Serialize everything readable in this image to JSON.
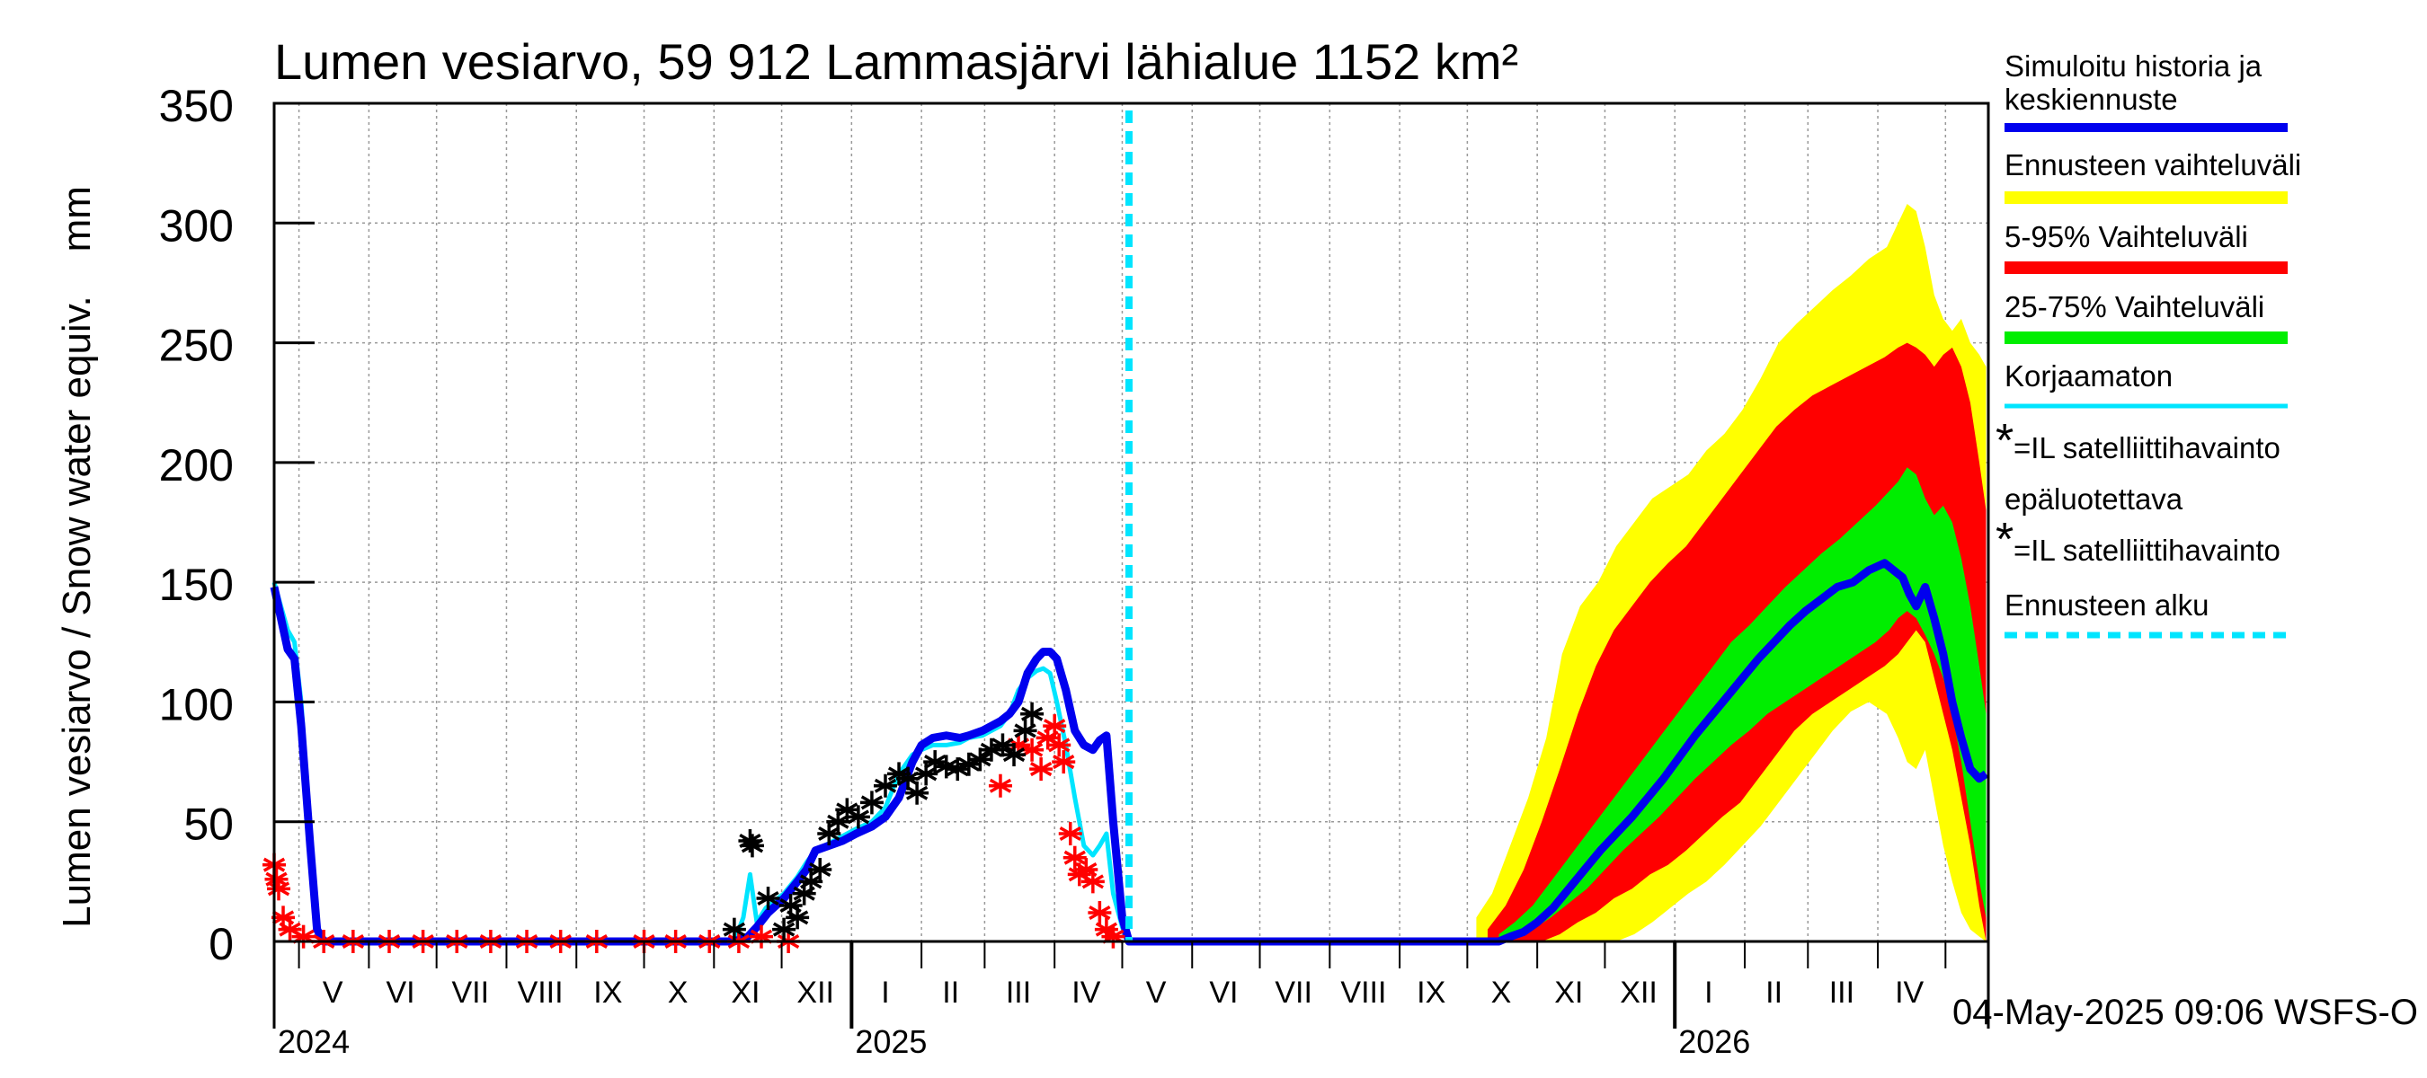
{
  "title": "Lumen vesiarvo, 59 912 Lammasjärvi lähialue 1152 km²",
  "footer": "04-May-2025 09:06 WSFS-O",
  "colors": {
    "simulated": "#0000ee",
    "uncorrected": "#00e5ff",
    "range_full": "#ffff00",
    "range_5_95": "#ff0000",
    "range_25_75": "#00ee00",
    "obs_unreliable": "#ff0000",
    "obs": "#000000",
    "forecast_start": "#00e5ff"
  },
  "legend": {
    "simulated": "Simuloitu historia ja keskiennuste",
    "range_full": "Ennusteen vaihteluväli",
    "range_5_95": "5-95% Vaihteluväli",
    "range_25_75": "25-75% Vaihteluväli",
    "uncorrected": "Korjaamaton",
    "obs_unreliable": "=IL satelliittihavainto epäluotettava",
    "obs": "=IL satelliittihavainto",
    "forecast_start": "Ennusteen alku"
  },
  "chart_data": {
    "type": "line",
    "title": "Lumen vesiarvo, 59 912 Lammasjärvi lähialue 1152 km²",
    "ylabel": "Lumen vesiarvo / Snow water equiv.    mm",
    "ylim": [
      0,
      350
    ],
    "yticks": [
      0,
      50,
      100,
      150,
      200,
      250,
      300,
      350
    ],
    "grid": true,
    "legend_position": "right",
    "x_range": [
      "2024-04-20",
      "2026-05-20"
    ],
    "month_labels": [
      {
        "label": "V",
        "date": "2024-05-16"
      },
      {
        "label": "VI",
        "date": "2024-06-15"
      },
      {
        "label": "VII",
        "date": "2024-07-16"
      },
      {
        "label": "VIII",
        "date": "2024-08-16"
      },
      {
        "label": "IX",
        "date": "2024-09-15"
      },
      {
        "label": "X",
        "date": "2024-10-16"
      },
      {
        "label": "XI",
        "date": "2024-11-15"
      },
      {
        "label": "XII",
        "date": "2024-12-16"
      },
      {
        "label": "I",
        "date": "2025-01-16"
      },
      {
        "label": "II",
        "date": "2025-02-14"
      },
      {
        "label": "III",
        "date": "2025-03-16"
      },
      {
        "label": "IV",
        "date": "2025-04-15"
      },
      {
        "label": "V",
        "date": "2025-05-16"
      },
      {
        "label": "VI",
        "date": "2025-06-15"
      },
      {
        "label": "VII",
        "date": "2025-07-16"
      },
      {
        "label": "VIII",
        "date": "2025-08-16"
      },
      {
        "label": "IX",
        "date": "2025-09-15"
      },
      {
        "label": "X",
        "date": "2025-10-16"
      },
      {
        "label": "XI",
        "date": "2025-11-15"
      },
      {
        "label": "XII",
        "date": "2025-12-16"
      },
      {
        "label": "I",
        "date": "2026-01-16"
      },
      {
        "label": "II",
        "date": "2026-02-14"
      },
      {
        "label": "III",
        "date": "2026-03-16"
      },
      {
        "label": "IV",
        "date": "2026-04-15"
      }
    ],
    "year_labels": [
      {
        "label": "2024",
        "date": "2024-04-20"
      },
      {
        "label": "2025",
        "date": "2025-01-01"
      },
      {
        "label": "2026",
        "date": "2026-01-01"
      }
    ],
    "forecast_start": "2025-05-04",
    "series": [
      {
        "name": "Simuloitu historia ja keskiennuste",
        "x": [
          "2024-04-20",
          "2024-04-23",
          "2024-04-26",
          "2024-04-29",
          "2024-05-02",
          "2024-05-06",
          "2024-05-09",
          "2024-05-12",
          "2024-10-25",
          "2024-11-10",
          "2024-11-16",
          "2024-11-20",
          "2024-11-25",
          "2024-12-02",
          "2024-12-08",
          "2024-12-12",
          "2024-12-16",
          "2024-12-22",
          "2024-12-28",
          "2025-01-03",
          "2025-01-10",
          "2025-01-16",
          "2025-01-22",
          "2025-01-28",
          "2025-02-01",
          "2025-02-06",
          "2025-02-12",
          "2025-02-18",
          "2025-02-22",
          "2025-02-28",
          "2025-03-04",
          "2025-03-08",
          "2025-03-12",
          "2025-03-16",
          "2025-03-20",
          "2025-03-24",
          "2025-03-27",
          "2025-03-30",
          "2025-04-02",
          "2025-04-06",
          "2025-04-10",
          "2025-04-14",
          "2025-04-18",
          "2025-04-21",
          "2025-04-24",
          "2025-04-27",
          "2025-05-01",
          "2025-05-04",
          "2025-10-10",
          "2025-10-15",
          "2025-10-20",
          "2025-10-26",
          "2025-11-01",
          "2025-11-08",
          "2025-11-15",
          "2025-11-22",
          "2025-11-29",
          "2025-12-06",
          "2025-12-13",
          "2025-12-20",
          "2025-12-27",
          "2026-01-03",
          "2026-01-10",
          "2026-01-17",
          "2026-01-24",
          "2026-01-31",
          "2026-02-07",
          "2026-02-14",
          "2026-02-21",
          "2026-02-28",
          "2026-03-07",
          "2026-03-14",
          "2026-03-21",
          "2026-03-28",
          "2026-04-04",
          "2026-04-08",
          "2026-04-12",
          "2026-04-15",
          "2026-04-18",
          "2026-04-22",
          "2026-04-26",
          "2026-04-30",
          "2026-05-04",
          "2026-05-08",
          "2026-05-12",
          "2026-05-16",
          "2026-05-19"
        ],
        "y": [
          148,
          135,
          122,
          118,
          90,
          40,
          5,
          0,
          0,
          0,
          2,
          6,
          12,
          18,
          25,
          30,
          38,
          40,
          42,
          45,
          48,
          52,
          60,
          75,
          82,
          85,
          86,
          85,
          86,
          88,
          90,
          92,
          95,
          100,
          112,
          118,
          121,
          121,
          118,
          105,
          88,
          82,
          80,
          84,
          86,
          50,
          10,
          0,
          0,
          0,
          2,
          4,
          8,
          14,
          22,
          30,
          38,
          45,
          52,
          60,
          68,
          77,
          86,
          94,
          102,
          110,
          118,
          125,
          132,
          138,
          143,
          148,
          150,
          155,
          158,
          155,
          152,
          145,
          140,
          148,
          135,
          120,
          100,
          85,
          72,
          68,
          70
        ]
      },
      {
        "name": "Korjaamaton",
        "x": [
          "2024-04-20",
          "2024-04-23",
          "2024-04-26",
          "2024-04-29",
          "2024-05-02",
          "2024-05-06",
          "2024-05-09",
          "2024-05-12",
          "2024-10-25",
          "2024-11-10",
          "2024-11-14",
          "2024-11-17",
          "2024-11-20",
          "2024-11-24",
          "2024-12-02",
          "2024-12-08",
          "2024-12-12",
          "2024-12-16",
          "2024-12-22",
          "2024-12-28",
          "2025-01-03",
          "2025-01-10",
          "2025-01-16",
          "2025-01-22",
          "2025-01-28",
          "2025-02-01",
          "2025-02-06",
          "2025-02-12",
          "2025-02-18",
          "2025-02-22",
          "2025-02-28",
          "2025-03-04",
          "2025-03-08",
          "2025-03-12",
          "2025-03-16",
          "2025-03-20",
          "2025-03-24",
          "2025-03-27",
          "2025-03-30",
          "2025-04-02",
          "2025-04-06",
          "2025-04-10",
          "2025-04-14",
          "2025-04-18",
          "2025-04-21",
          "2025-04-24",
          "2025-04-27",
          "2025-05-01",
          "2025-05-04"
        ],
        "y": [
          150,
          140,
          130,
          125,
          100,
          45,
          6,
          0,
          0,
          0,
          10,
          28,
          8,
          14,
          20,
          27,
          33,
          38,
          41,
          44,
          47,
          50,
          56,
          70,
          78,
          80,
          82,
          82,
          83,
          85,
          86,
          88,
          90,
          95,
          105,
          110,
          113,
          114,
          112,
          100,
          82,
          60,
          40,
          36,
          40,
          45,
          20,
          6,
          0
        ]
      }
    ],
    "bands": [
      {
        "name": "Ennusteen vaihteluväli",
        "x": [
          "2025-10-05",
          "2025-10-12",
          "2025-10-20",
          "2025-10-28",
          "2025-11-05",
          "2025-11-12",
          "2025-11-20",
          "2025-11-28",
          "2025-12-06",
          "2025-12-14",
          "2025-12-22",
          "2025-12-30",
          "2026-01-07",
          "2026-01-15",
          "2026-01-23",
          "2026-01-31",
          "2026-02-08",
          "2026-02-16",
          "2026-02-24",
          "2026-03-04",
          "2026-03-12",
          "2026-03-20",
          "2026-03-28",
          "2026-04-05",
          "2026-04-10",
          "2026-04-14",
          "2026-04-18",
          "2026-04-22",
          "2026-04-26",
          "2026-04-30",
          "2026-05-04",
          "2026-05-08",
          "2026-05-12",
          "2026-05-16",
          "2026-05-19"
        ],
        "low": [
          0,
          0,
          0,
          0,
          0,
          0,
          0,
          0,
          0,
          3,
          8,
          14,
          20,
          25,
          32,
          40,
          48,
          58,
          68,
          78,
          88,
          96,
          100,
          95,
          85,
          75,
          72,
          80,
          60,
          40,
          25,
          12,
          5,
          2,
          0
        ],
        "high": [
          10,
          20,
          40,
          60,
          85,
          120,
          140,
          150,
          165,
          175,
          185,
          190,
          195,
          205,
          212,
          222,
          235,
          250,
          258,
          265,
          272,
          278,
          285,
          290,
          300,
          308,
          305,
          290,
          270,
          260,
          255,
          260,
          250,
          245,
          240
        ]
      },
      {
        "name": "5-95% Vaihteluväli",
        "x": [
          "2025-10-10",
          "2025-10-18",
          "2025-10-26",
          "2025-11-03",
          "2025-11-11",
          "2025-11-19",
          "2025-11-27",
          "2025-12-05",
          "2025-12-13",
          "2025-12-21",
          "2025-12-29",
          "2026-01-06",
          "2026-01-14",
          "2026-01-22",
          "2026-01-30",
          "2026-02-07",
          "2026-02-15",
          "2026-02-23",
          "2026-03-03",
          "2026-03-11",
          "2026-03-19",
          "2026-03-27",
          "2026-04-04",
          "2026-04-10",
          "2026-04-14",
          "2026-04-18",
          "2026-04-22",
          "2026-04-26",
          "2026-04-30",
          "2026-05-04",
          "2026-05-08",
          "2026-05-12",
          "2026-05-16",
          "2026-05-19"
        ],
        "low": [
          0,
          0,
          0,
          0,
          3,
          8,
          12,
          18,
          22,
          28,
          32,
          38,
          45,
          52,
          58,
          68,
          78,
          88,
          95,
          100,
          105,
          110,
          115,
          120,
          125,
          130,
          125,
          110,
          95,
          80,
          60,
          40,
          15,
          0
        ],
        "high": [
          5,
          15,
          30,
          50,
          72,
          95,
          115,
          130,
          140,
          150,
          158,
          165,
          175,
          185,
          195,
          205,
          215,
          222,
          228,
          232,
          236,
          240,
          244,
          248,
          250,
          248,
          245,
          240,
          245,
          248,
          240,
          225,
          200,
          180
        ]
      },
      {
        "name": "25-75% Vaihteluväli",
        "x": [
          "2025-10-15",
          "2025-10-22",
          "2025-10-30",
          "2025-11-07",
          "2025-11-15",
          "2025-11-23",
          "2025-12-01",
          "2025-12-09",
          "2025-12-17",
          "2025-12-25",
          "2026-01-02",
          "2026-01-10",
          "2026-01-18",
          "2026-01-26",
          "2026-02-03",
          "2026-02-11",
          "2026-02-19",
          "2026-02-27",
          "2026-03-07",
          "2026-03-15",
          "2026-03-23",
          "2026-03-31",
          "2026-04-06",
          "2026-04-10",
          "2026-04-14",
          "2026-04-18",
          "2026-04-22",
          "2026-04-26",
          "2026-04-30",
          "2026-05-04",
          "2026-05-08",
          "2026-05-12",
          "2026-05-16",
          "2026-05-19"
        ],
        "low": [
          0,
          2,
          5,
          10,
          16,
          22,
          30,
          38,
          45,
          52,
          60,
          68,
          75,
          82,
          88,
          95,
          100,
          105,
          110,
          115,
          120,
          125,
          130,
          135,
          138,
          135,
          128,
          120,
          110,
          95,
          75,
          50,
          25,
          10
        ],
        "high": [
          3,
          8,
          15,
          25,
          35,
          45,
          55,
          65,
          75,
          85,
          95,
          105,
          115,
          125,
          132,
          140,
          148,
          155,
          162,
          168,
          175,
          182,
          188,
          192,
          198,
          195,
          185,
          178,
          182,
          175,
          160,
          140,
          115,
          95
        ]
      }
    ],
    "observations": [
      {
        "name": "=IL satelliittihavainto",
        "x": [
          "2024-11-10",
          "2024-11-17",
          "2024-11-18",
          "2024-11-25",
          "2024-12-02",
          "2024-12-05",
          "2024-12-08",
          "2024-12-11",
          "2024-12-14",
          "2024-12-18",
          "2024-12-22",
          "2024-12-26",
          "2024-12-30",
          "2025-01-04",
          "2025-01-10",
          "2025-01-16",
          "2025-01-22",
          "2025-01-26",
          "2025-01-30",
          "2025-02-03",
          "2025-02-07",
          "2025-02-12",
          "2025-02-17",
          "2025-02-22",
          "2025-02-27",
          "2025-03-04",
          "2025-03-09",
          "2025-03-14",
          "2025-03-19",
          "2025-03-22"
        ],
        "y": [
          5,
          42,
          40,
          18,
          5,
          15,
          10,
          20,
          25,
          30,
          45,
          50,
          55,
          52,
          58,
          65,
          70,
          68,
          62,
          70,
          75,
          73,
          72,
          74,
          76,
          80,
          82,
          78,
          88,
          95
        ]
      },
      {
        "name": "=IL satelliittihavainto epäluotettava",
        "x": [
          "2024-04-20",
          "2024-04-21",
          "2024-04-22",
          "2024-04-24",
          "2024-04-27",
          "2024-05-03",
          "2024-05-12",
          "2024-05-25",
          "2024-06-10",
          "2024-06-25",
          "2024-07-10",
          "2024-07-25",
          "2024-08-10",
          "2024-08-25",
          "2024-09-10",
          "2024-10-01",
          "2024-10-15",
          "2024-10-30",
          "2024-11-12",
          "2024-11-22",
          "2024-12-04",
          "2025-03-08",
          "2025-03-16",
          "2025-03-22",
          "2025-03-26",
          "2025-03-29",
          "2025-04-01",
          "2025-04-03",
          "2025-04-05",
          "2025-04-08",
          "2025-04-10",
          "2025-04-12",
          "2025-04-15",
          "2025-04-18",
          "2025-04-21",
          "2025-04-24",
          "2025-04-27"
        ],
        "y": [
          32,
          26,
          22,
          10,
          5,
          2,
          0,
          0,
          0,
          0,
          0,
          0,
          0,
          0,
          0,
          0,
          0,
          0,
          0,
          2,
          0,
          65,
          82,
          80,
          72,
          85,
          90,
          82,
          75,
          45,
          35,
          28,
          30,
          25,
          12,
          5,
          2
        ]
      }
    ]
  }
}
